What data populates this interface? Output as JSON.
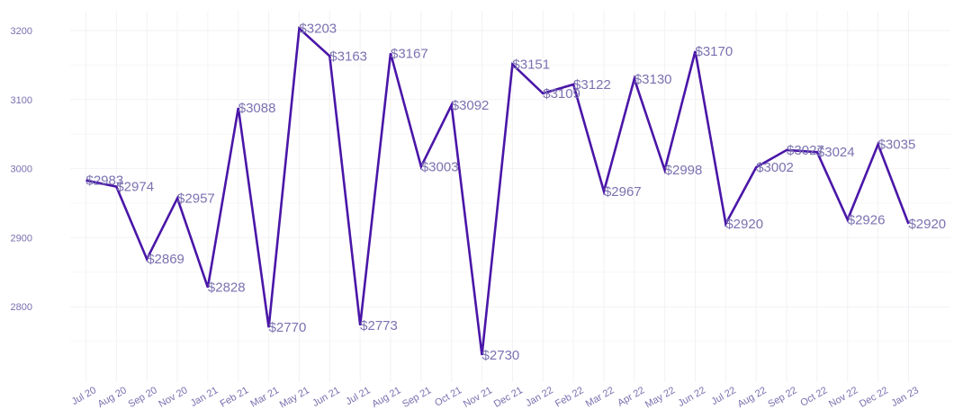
{
  "chart_data": {
    "type": "line",
    "title": "",
    "xlabel": "",
    "ylabel": "",
    "currency_prefix": "$",
    "line_color": "#4a16a8",
    "categories": [
      "Jul 20",
      "Aug 20",
      "Sep 20",
      "Nov 20",
      "Jan 21",
      "Feb 21",
      "Mar 21",
      "May 21",
      "Jun 21",
      "Jul 21",
      "Aug 21",
      "Sep 21",
      "Oct 21",
      "Nov 21",
      "Dec 21",
      "Jan 22",
      "Feb 22",
      "Mar 22",
      "Apr 22",
      "May 22",
      "Jun 22",
      "Jul 22",
      "Aug 22",
      "Sep 22",
      "Oct 22",
      "Nov 22",
      "Dec 22",
      "Jan 23"
    ],
    "values": [
      2983,
      2974,
      2869,
      2957,
      2828,
      3088,
      2770,
      3203,
      3163,
      2773,
      3167,
      3003,
      3092,
      2730,
      3151,
      3109,
      3122,
      2967,
      3130,
      2998,
      3170,
      2920,
      3002,
      3027,
      3024,
      2926,
      3035,
      2920
    ],
    "yticks": [
      2800,
      2900,
      3000,
      3100,
      3200
    ],
    "ylim": [
      2690,
      3230
    ],
    "grid": true
  }
}
